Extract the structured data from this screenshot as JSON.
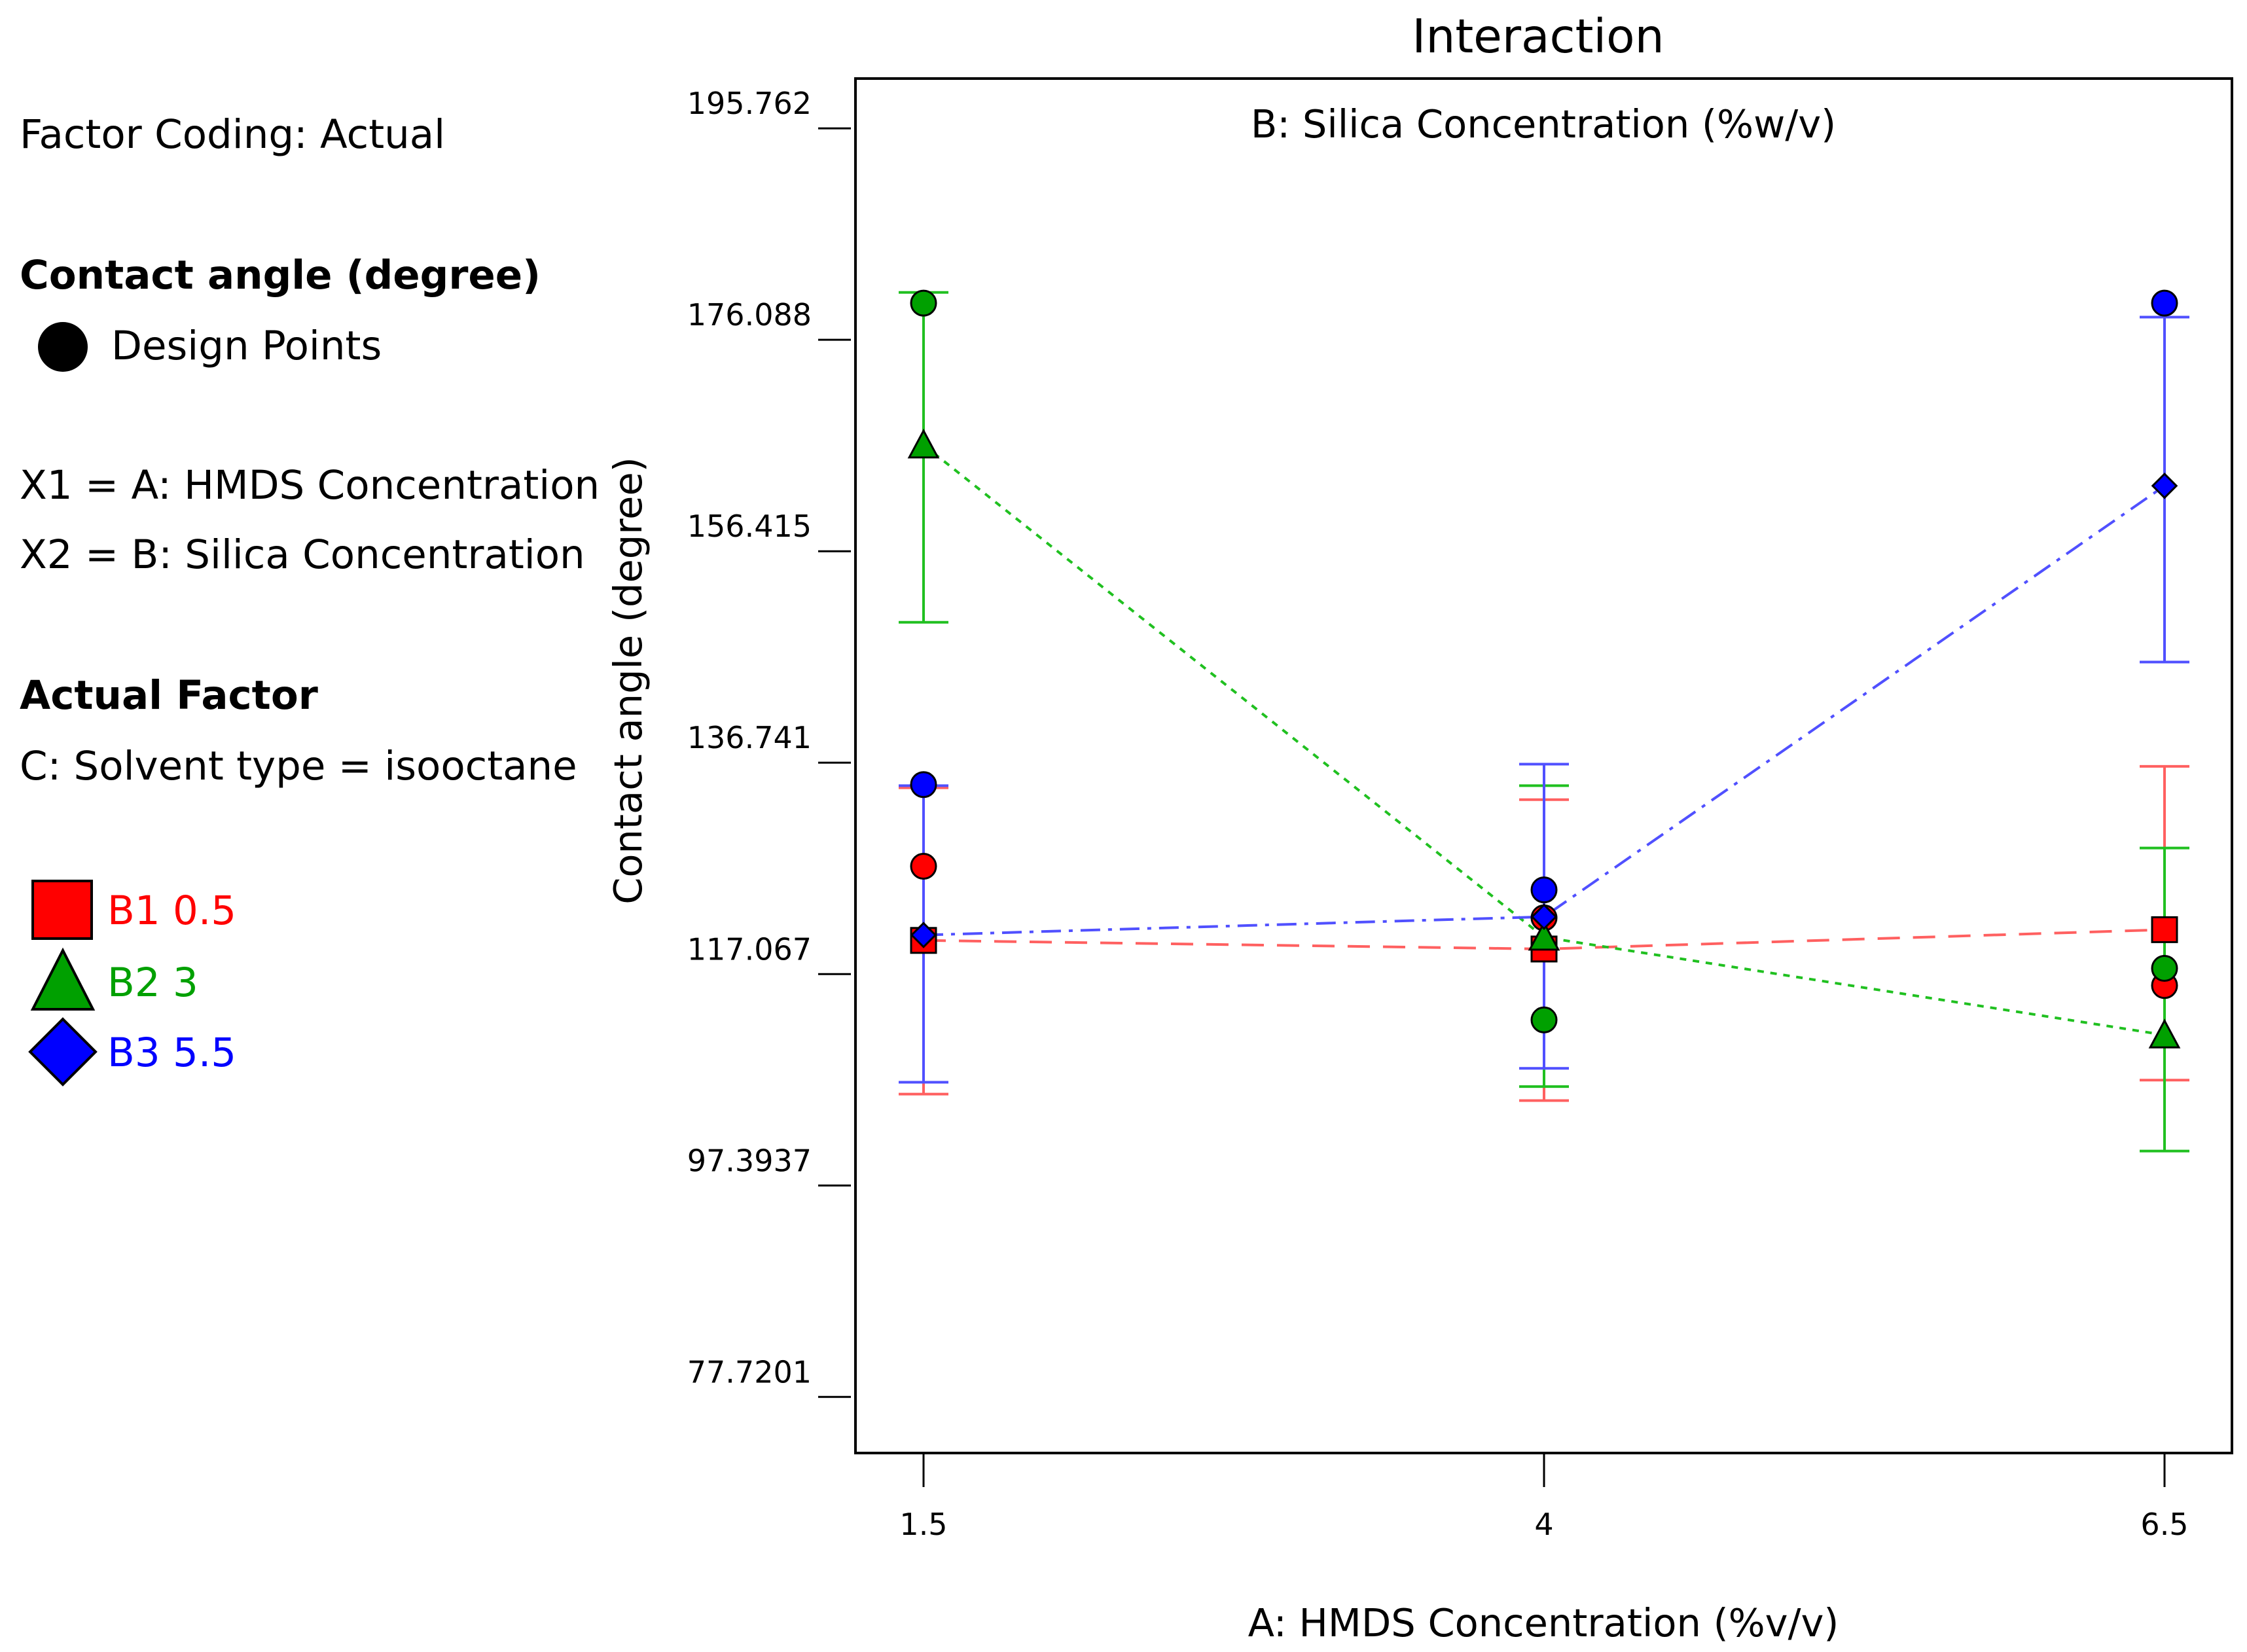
{
  "sidebar": {
    "factor_coding": "Factor Coding: Actual",
    "response_title": "Contact angle (degree)",
    "design_points_label": "Design Points",
    "x1": "X1 = A: HMDS Concentration",
    "x2": "X2 = B: Silica Concentration",
    "actual_factor_title": "Actual Factor",
    "actual_factor_value": "C: Solvent type = isooctane"
  },
  "chart_data": {
    "type": "line",
    "title": "Interaction",
    "subtitle": "B: Silica Concentration (%w/v)",
    "xlabel": "A: HMDS Concentration (%v/v)",
    "ylabel": "Contact angle (degree)",
    "x": [
      1.5,
      4,
      6.5
    ],
    "x_tick_labels": [
      "1.5",
      "4",
      "6.5"
    ],
    "xlim": [
      1.5,
      6.5
    ],
    "ylim": [
      72.5,
      200.4
    ],
    "y_ticks": [
      77.7201,
      97.3937,
      117.067,
      136.741,
      156.415,
      176.088,
      195.762
    ],
    "y_tick_labels": [
      "77.7201",
      "97.3937",
      "117.067",
      "136.741",
      "156.415",
      "176.088",
      "195.762"
    ],
    "colors": {
      "B1": "#ff0000",
      "B2": "#00a000",
      "B3": "#0000ff",
      "bar_red": "#ff6060",
      "bar_green": "#20c020",
      "bar_blue": "#5050ff"
    },
    "series": [
      {
        "name": "B1",
        "legend_code": "B1",
        "legend_value": "0.5",
        "marker": "square",
        "line": "dashed",
        "color_key": "B1",
        "bar_key": "bar_red",
        "values": [
          120.2,
          119.4,
          121.2
        ],
        "ci_low": [
          105.9,
          105.3,
          107.2
        ],
        "ci_high": [
          134.4,
          133.3,
          136.4
        ]
      },
      {
        "name": "B2",
        "legend_code": "B2",
        "legend_value": "3",
        "marker": "triangle",
        "line": "dotted",
        "color_key": "B2",
        "bar_key": "bar_green",
        "values": [
          166.3,
          120.5,
          111.4
        ],
        "ci_low": [
          149.8,
          106.6,
          100.6
        ],
        "ci_high": [
          180.5,
          134.6,
          128.8
        ]
      },
      {
        "name": "B3",
        "legend_code": "B3",
        "legend_value": "5.5",
        "marker": "diamond",
        "line": "dashdot",
        "color_key": "B3",
        "bar_key": "bar_blue",
        "values": [
          120.7,
          122.4,
          162.5
        ],
        "ci_low": [
          107.0,
          108.3,
          146.1
        ],
        "ci_high": [
          134.6,
          136.6,
          178.2
        ]
      }
    ],
    "design_points": [
      {
        "series": "B1",
        "x": 1.5,
        "y": 127.1
      },
      {
        "series": "B2",
        "x": 1.5,
        "y": 179.5
      },
      {
        "series": "B3",
        "x": 1.5,
        "y": 134.7
      },
      {
        "series": "B1",
        "x": 4,
        "y": 122.3
      },
      {
        "series": "B2",
        "x": 4,
        "y": 112.8
      },
      {
        "series": "B3",
        "x": 4,
        "y": 124.9
      },
      {
        "series": "B1",
        "x": 6.5,
        "y": 116.0
      },
      {
        "series": "B2",
        "x": 6.5,
        "y": 117.6
      },
      {
        "series": "B3",
        "x": 6.5,
        "y": 179.5
      }
    ]
  }
}
